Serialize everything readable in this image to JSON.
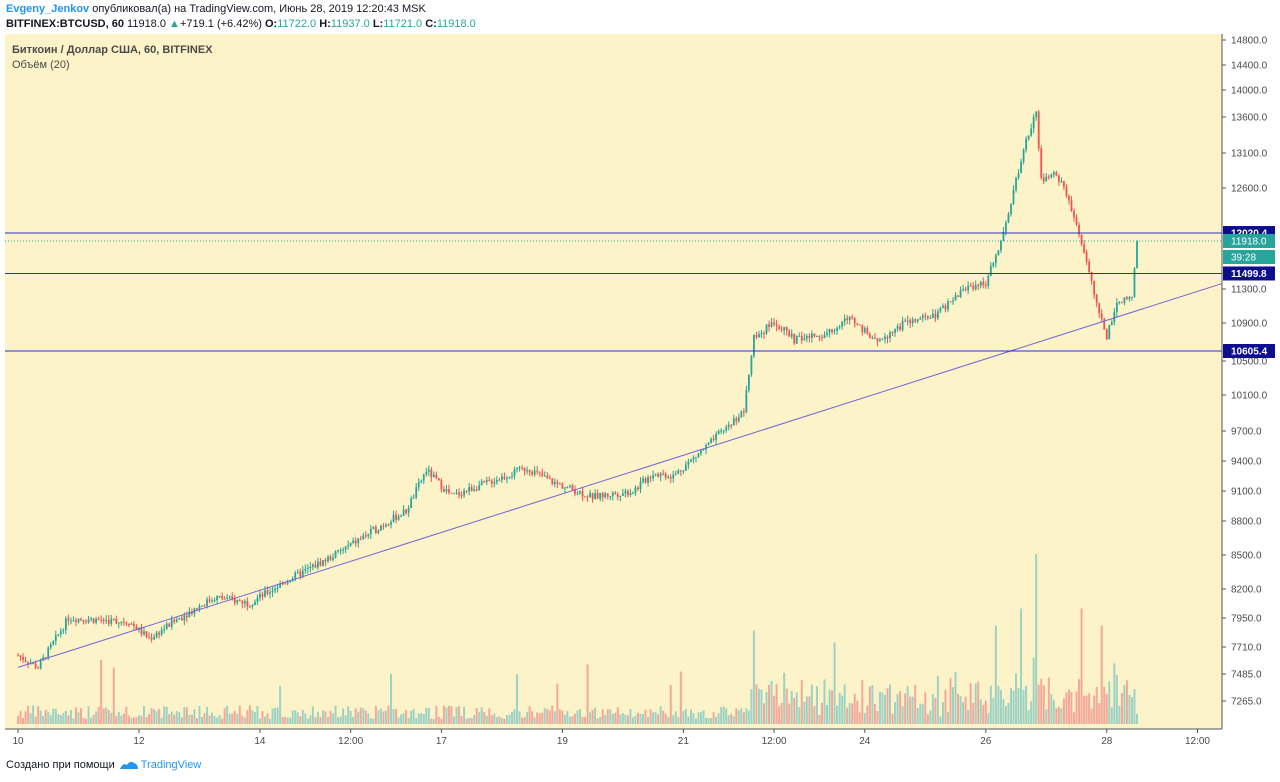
{
  "header": {
    "author": "Evgeny_Jenkov",
    "published_text": "опубликовал(а) на TradingView.com, Июнь 28, 2019 12:20:43 MSK",
    "symbol": "BITFINEX:BTCUSD, 60",
    "last": "11918.0",
    "change": "+719.1 (+6.42%)",
    "o_label": "O:",
    "o_value": "11722.0",
    "h_label": "H:",
    "h_value": "11937.0",
    "l_label": "L:",
    "l_value": "11721.0",
    "c_label": "C:",
    "c_value": "11918.0"
  },
  "legend": {
    "title": "Биткоин / Доллар США, 60, BITFINEX",
    "volume": "Объём (20)"
  },
  "footer": {
    "created_with": "Создано при помощи",
    "brand": "TradingView"
  },
  "colors": {
    "background": "#fdf3c8",
    "up": "#26a69a",
    "down": "#ef5350",
    "vol_up": "#9ed2c4",
    "vol_down": "#f3a89a",
    "hline": "#2b2bd6",
    "trend": "#6f63d8"
  },
  "chart_data": {
    "type": "candlestick",
    "title": "Биткоин / Доллар США, 60, BITFINEX",
    "y_ticks": [
      14800.0,
      14400.0,
      14000.0,
      13600.0,
      13100.0,
      12600.0,
      12020.4,
      11918.0,
      11499.8,
      11300.0,
      10900.0,
      10605.4,
      10500.0,
      10100.0,
      9700.0,
      9400.0,
      9100.0,
      8800.0,
      8500.0,
      8200.0,
      7950.0,
      7710.0,
      7485.0,
      7265.0
    ],
    "y_tick_labels": [
      "14800.0",
      "14400.0",
      "14000.0",
      "13600.0",
      "13100.0",
      "12600.0",
      "11300.0",
      "10900.0",
      "10500.0",
      "10100.0",
      "9700.0",
      "9400.0",
      "9100.0",
      "8800.0",
      "8500.0",
      "8200.0",
      "7950.0",
      "7710.0",
      "7485.0",
      "7265.0"
    ],
    "x_tick_labels": [
      "10",
      "12",
      "14",
      "12:00",
      "17",
      "19",
      "21",
      "12:00",
      "24",
      "26",
      "28",
      "12:00"
    ],
    "price_labels": [
      {
        "label": "12020.4",
        "value": 12020.4,
        "kind": "hline"
      },
      {
        "label": "11918.0",
        "value": 11918.0,
        "kind": "last"
      },
      {
        "label": "39:28",
        "value": 11918.0,
        "kind": "countdown"
      },
      {
        "label": "11499.8",
        "value": 11499.8,
        "kind": "hline"
      },
      {
        "label": "10605.4",
        "value": 10605.4,
        "kind": "hline"
      }
    ],
    "horizontal_lines": [
      12020.4,
      11499.8,
      10605.4
    ],
    "last_price": 11918.0,
    "trendline": {
      "from": {
        "date": "Jun 10",
        "price": 7540
      },
      "to": {
        "date": "Jun 29 10:00",
        "price": 11370
      }
    },
    "price_anchors": [
      {
        "date": "Jun 10 00:00",
        "price": 7640
      },
      {
        "date": "Jun 10 08:00",
        "price": 7540
      },
      {
        "date": "Jun 10 20:00",
        "price": 7950
      },
      {
        "date": "Jun 11 20:00",
        "price": 7920
      },
      {
        "date": "Jun 12 04:00",
        "price": 7780
      },
      {
        "date": "Jun 12 16:00",
        "price": 7950
      },
      {
        "date": "Jun 13 06:00",
        "price": 8130
      },
      {
        "date": "Jun 13 20:00",
        "price": 8080
      },
      {
        "date": "Jun 14 12:00",
        "price": 8290
      },
      {
        "date": "Jun 15 04:00",
        "price": 8480
      },
      {
        "date": "Jun 15 20:00",
        "price": 8700
      },
      {
        "date": "Jun 16 10:00",
        "price": 8900
      },
      {
        "date": "Jun 16 18:00",
        "price": 9310
      },
      {
        "date": "Jun 17 04:00",
        "price": 9050
      },
      {
        "date": "Jun 17 20:00",
        "price": 9200
      },
      {
        "date": "Jun 18 10:00",
        "price": 9330
      },
      {
        "date": "Jun 18 20:00",
        "price": 9190
      },
      {
        "date": "Jun 19 12:00",
        "price": 9040
      },
      {
        "date": "Jun 20 04:00",
        "price": 9100
      },
      {
        "date": "Jun 20 12:00",
        "price": 9280
      },
      {
        "date": "Jun 20 20:00",
        "price": 9250
      },
      {
        "date": "Jun 21 10:00",
        "price": 9560
      },
      {
        "date": "Jun 22 00:00",
        "price": 9920
      },
      {
        "date": "Jun 22 04:00",
        "price": 10740
      },
      {
        "date": "Jun 22 12:00",
        "price": 10920
      },
      {
        "date": "Jun 22 20:00",
        "price": 10720
      },
      {
        "date": "Jun 23 08:00",
        "price": 10780
      },
      {
        "date": "Jun 23 18:00",
        "price": 10970
      },
      {
        "date": "Jun 24 04:00",
        "price": 10700
      },
      {
        "date": "Jun 24 16:00",
        "price": 10900
      },
      {
        "date": "Jun 25 04:00",
        "price": 10980
      },
      {
        "date": "Jun 25 16:00",
        "price": 11320
      },
      {
        "date": "Jun 26 00:00",
        "price": 11380
      },
      {
        "date": "Jun 26 06:00",
        "price": 11900
      },
      {
        "date": "Jun 26 12:00",
        "price": 12700
      },
      {
        "date": "Jun 26 16:00",
        "price": 13250
      },
      {
        "date": "Jun 26 20:00",
        "price": 13720
      },
      {
        "date": "Jun 26 22:00",
        "price": 12700
      },
      {
        "date": "Jun 27 04:00",
        "price": 12800
      },
      {
        "date": "Jun 27 08:00",
        "price": 12500
      },
      {
        "date": "Jun 27 14:00",
        "price": 11900
      },
      {
        "date": "Jun 27 20:00",
        "price": 11100
      },
      {
        "date": "Jun 28 00:00",
        "price": 10750
      },
      {
        "date": "Jun 28 04:00",
        "price": 11150
      },
      {
        "date": "Jun 28 10:00",
        "price": 11200
      },
      {
        "date": "Jun 28 12:00",
        "price": 11918
      }
    ],
    "volume_spikes": [
      {
        "date": "Jun 22 04:00",
        "level": 0.55
      },
      {
        "date": "Jun 23 12:00",
        "level": 0.48
      },
      {
        "date": "Jun 26 04:00",
        "level": 0.58
      },
      {
        "date": "Jun 26 14:00",
        "level": 0.68
      },
      {
        "date": "Jun 26 20:00",
        "level": 1.0
      },
      {
        "date": "Jun 27 14:00",
        "level": 0.68
      },
      {
        "date": "Jun 27 22:00",
        "level": 0.58
      }
    ],
    "grid": false,
    "legend": "top-left"
  }
}
